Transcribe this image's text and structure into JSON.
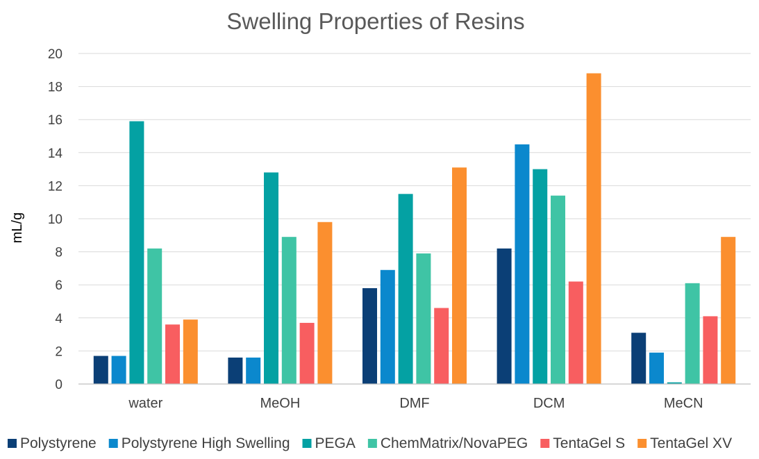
{
  "chart_data": {
    "type": "bar",
    "title": "Swelling Properties of Resins",
    "xlabel": "",
    "ylabel": "mL/g",
    "ylim": [
      0,
      20
    ],
    "yticks": [
      "0",
      "2",
      "4",
      "6",
      "8",
      "10",
      "12",
      "14",
      "16",
      "18",
      "20"
    ],
    "grid": true,
    "legend_position": "bottom",
    "categories": [
      "water",
      "MeOH",
      "DMF",
      "DCM",
      "MeCN"
    ],
    "series": [
      {
        "name": "Polystyrene",
        "color": "#0b3f76",
        "values": [
          1.7,
          1.6,
          5.8,
          8.2,
          3.1
        ]
      },
      {
        "name": "Polystyrene High Swelling",
        "color": "#0b88cd",
        "values": [
          1.7,
          1.6,
          6.9,
          14.5,
          1.9
        ]
      },
      {
        "name": "PEGA",
        "color": "#04a1a3",
        "values": [
          15.9,
          12.8,
          11.5,
          13.0,
          0.1
        ]
      },
      {
        "name": "ChemMatrix/NovaPEG",
        "color": "#3fc4a5",
        "values": [
          8.2,
          8.9,
          7.9,
          11.4,
          6.1
        ]
      },
      {
        "name": "TentaGel S",
        "color": "#f85e60",
        "values": [
          3.6,
          3.7,
          4.6,
          6.2,
          4.1
        ]
      },
      {
        "name": "TentaGel XV",
        "color": "#fb8f2f",
        "values": [
          3.9,
          9.8,
          13.1,
          18.8,
          8.9
        ]
      }
    ]
  }
}
